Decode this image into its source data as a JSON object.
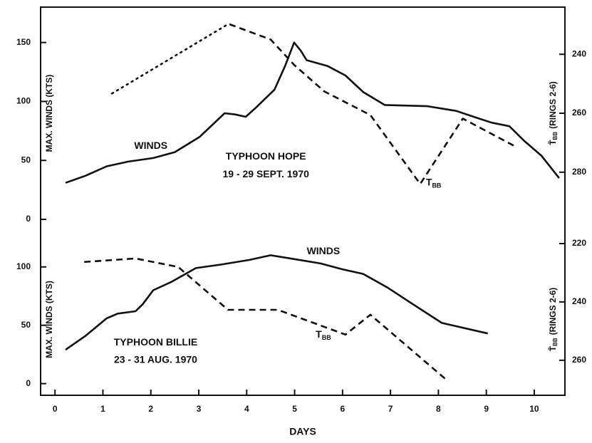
{
  "chart_data": [
    {
      "type": "line",
      "y_label": "MAX. WINDS (KTS)",
      "y2_label": {
        "symbol": "T̄",
        "sub": "BB",
        "rest": "(RINGS 2-6)"
      },
      "xlim": [
        -0.3,
        10.64
      ],
      "ylim": [
        0,
        180
      ],
      "yticks": [
        0,
        50,
        100,
        150
      ],
      "y2lim": [
        296,
        224
      ],
      "y2ticks": [
        240,
        260,
        280
      ],
      "annotations": [
        {
          "text": "WINDS",
          "x": 2.0,
          "y": 62
        },
        {
          "text": "TYPHOON HOPE",
          "x": 4.4,
          "y": 53
        },
        {
          "text": "19 - 29 SEPT. 1970",
          "x": 4.4,
          "y": 38
        },
        {
          "text": "T",
          "sub": "BB",
          "x": 7.9,
          "y": 31
        }
      ],
      "series": [
        {
          "color": "#111",
          "style": "solid",
          "x": [
            0.22,
            0.64,
            1.08,
            1.53,
            2.05,
            2.5,
            3.02,
            3.54,
            3.76,
            3.98,
            4.2,
            4.58,
            4.8,
            4.99,
            5.13,
            5.25,
            5.69,
            6.06,
            6.43,
            6.88,
            7.77,
            8.37,
            8.81,
            9.11,
            9.48,
            9.78,
            10.15,
            10.52
          ],
          "values": [
            31,
            37,
            45,
            49,
            52,
            57,
            70,
            90,
            89,
            87,
            95,
            110,
            130,
            150,
            143,
            135,
            130,
            122,
            108,
            97,
            96,
            92,
            86,
            82,
            79,
            67,
            54,
            35
          ]
        },
        {
          "color": "#111",
          "style": "dotted",
          "axis": "y2",
          "x": [
            1.19,
            3.61
          ],
          "values": [
            253.3,
            229.8
          ]
        },
        {
          "color": "#111",
          "style": "dashed",
          "axis": "y2",
          "x": [
            3.64,
            4.5,
            4.99,
            5.62,
            6.58,
            7.62,
            8.51,
            9.63
          ],
          "values": [
            229.8,
            235,
            243.6,
            252.6,
            260.6,
            284,
            261.8,
            271.5
          ]
        }
      ]
    },
    {
      "type": "line",
      "y_label": "MAX. WINDS (KTS)",
      "y2_label": {
        "symbol": "T̄",
        "sub": "BB",
        "rest": "(RINGS 2-6)"
      },
      "x_label": "DAYS",
      "xlim": [
        -0.3,
        10.64
      ],
      "xticks": [
        0,
        1,
        2,
        3,
        4,
        5,
        6,
        7,
        8,
        9,
        10
      ],
      "ylim": [
        -10,
        120
      ],
      "yticks": [
        0,
        50,
        100
      ],
      "y2lim": [
        272,
        220
      ],
      "y2ticks": [
        220,
        240,
        260
      ],
      "annotations": [
        {
          "text": "WINDS",
          "x": 5.6,
          "y": 113
        },
        {
          "text": "TYPHOON BILLIE",
          "x": 2.1,
          "y": 35
        },
        {
          "text": "23 - 31 AUG. 1970",
          "x": 2.1,
          "y": 20
        },
        {
          "text": "T",
          "sub": "BB",
          "x": 5.6,
          "y": 42
        }
      ],
      "series": [
        {
          "color": "#111",
          "style": "solid",
          "x": [
            0.22,
            0.64,
            1.08,
            1.31,
            1.68,
            1.83,
            2.05,
            2.42,
            2.94,
            3.46,
            4.06,
            4.5,
            4.95,
            5.54,
            5.99,
            6.43,
            6.95,
            7.47,
            8.07,
            9.03
          ],
          "values": [
            29,
            41,
            56,
            60,
            62,
            68,
            80,
            87,
            99,
            102,
            106,
            110,
            107,
            103,
            98,
            94,
            82,
            68,
            52,
            43
          ]
        },
        {
          "color": "#111",
          "style": "dashed",
          "axis": "y2",
          "x": [
            0.61,
            1.68,
            2.57,
            3.61,
            4.65,
            6.06,
            6.58,
            8.14
          ],
          "values": [
            226.3,
            225.1,
            228,
            242.7,
            242.7,
            251.2,
            244.4,
            266.3
          ]
        }
      ]
    }
  ]
}
